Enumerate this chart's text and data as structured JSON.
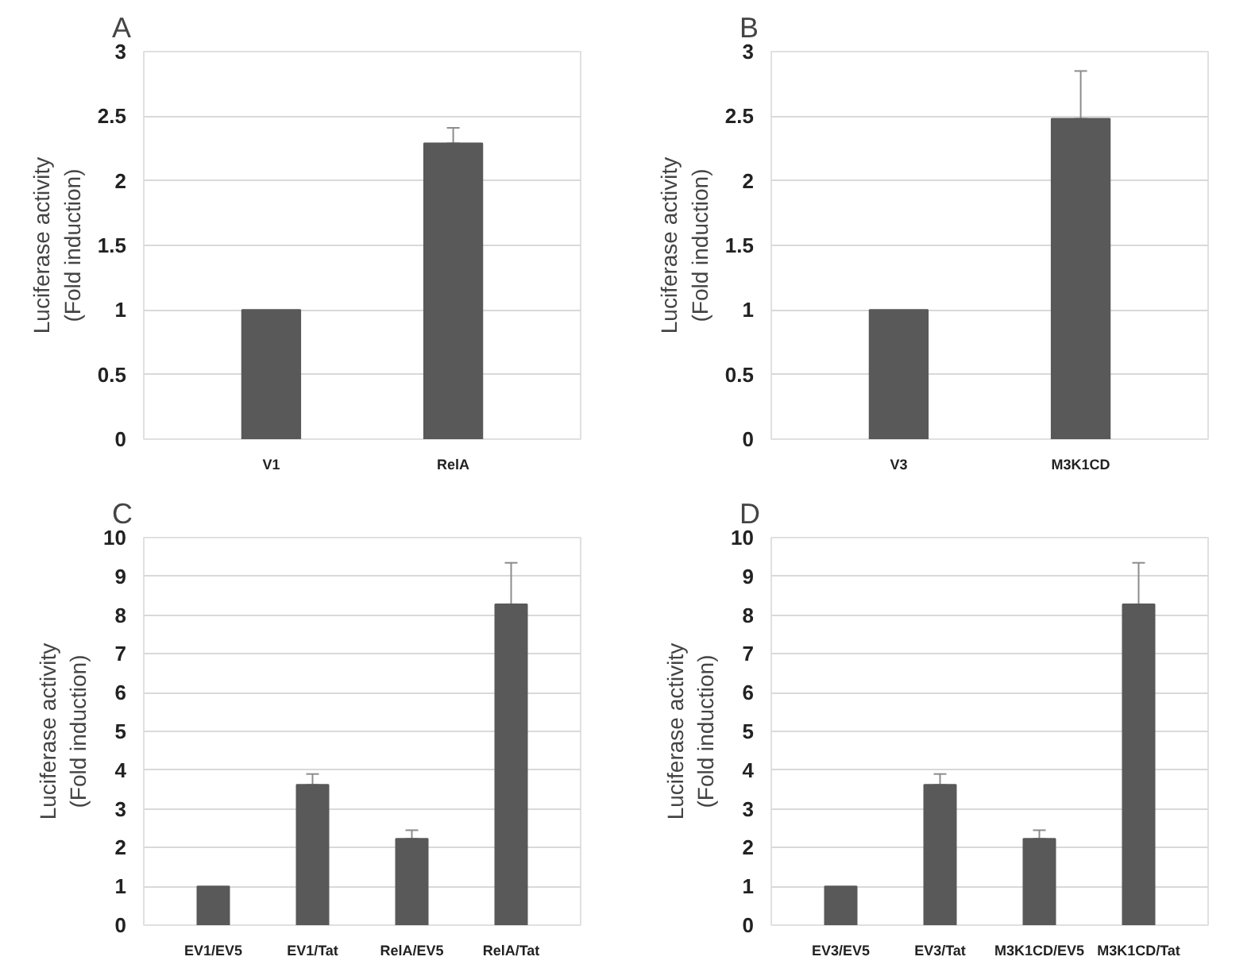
{
  "chart_data": [
    {
      "type": "bar",
      "title": "A",
      "ylabel": "Luciferase activity\n(Fold induction)",
      "categories": [
        "V1",
        "RelA"
      ],
      "values": [
        1,
        2.29
      ],
      "errors": [
        null,
        [
          2.29,
          2.41
        ]
      ],
      "color": "#595959",
      "ylim": [
        0,
        3
      ],
      "yticks": [
        0,
        0.5,
        1,
        1.5,
        2,
        2.5,
        3
      ],
      "grid": "y"
    },
    {
      "type": "bar",
      "title": "B",
      "ylabel": "Luciferase activity\n(Fold induction)",
      "categories": [
        "V3",
        "M3K1CD"
      ],
      "values": [
        1,
        2.48
      ],
      "errors": [
        null,
        [
          2.48,
          2.85
        ]
      ],
      "color": "#595959",
      "ylim": [
        0,
        3
      ],
      "yticks": [
        0,
        0.5,
        1,
        1.5,
        2,
        2.5,
        3
      ],
      "grid": "y"
    },
    {
      "type": "bar",
      "title": "C",
      "ylabel": "Luciferase activity\n(Fold induction)",
      "categories": [
        "EV1/EV5",
        "EV1/Tat",
        "RelA/EV5",
        "RelA/Tat"
      ],
      "values": [
        1,
        3.62,
        2.23,
        8.28
      ],
      "errors": [
        null,
        [
          3.62,
          3.9
        ],
        [
          2.23,
          2.45
        ],
        [
          8.28,
          9.35
        ]
      ],
      "color": "#595959",
      "ylim": [
        0,
        10
      ],
      "yticks": [
        0,
        1,
        2,
        3,
        4,
        5,
        6,
        7,
        8,
        9,
        10
      ],
      "grid": "y"
    },
    {
      "type": "bar",
      "title": "D",
      "ylabel": "Luciferase activity\n(Fold induction)",
      "categories": [
        "EV3/EV5",
        "EV3/Tat",
        "M3K1CD/EV5",
        "M3K1CD/Tat"
      ],
      "values": [
        1,
        3.62,
        2.23,
        8.28
      ],
      "errors": [
        null,
        [
          3.62,
          3.9
        ],
        [
          2.23,
          2.45
        ],
        [
          8.28,
          9.35
        ]
      ],
      "color": "#595959",
      "ylim": [
        0,
        10
      ],
      "yticks": [
        0,
        1,
        2,
        3,
        4,
        5,
        6,
        7,
        8,
        9,
        10
      ],
      "grid": "y"
    }
  ]
}
